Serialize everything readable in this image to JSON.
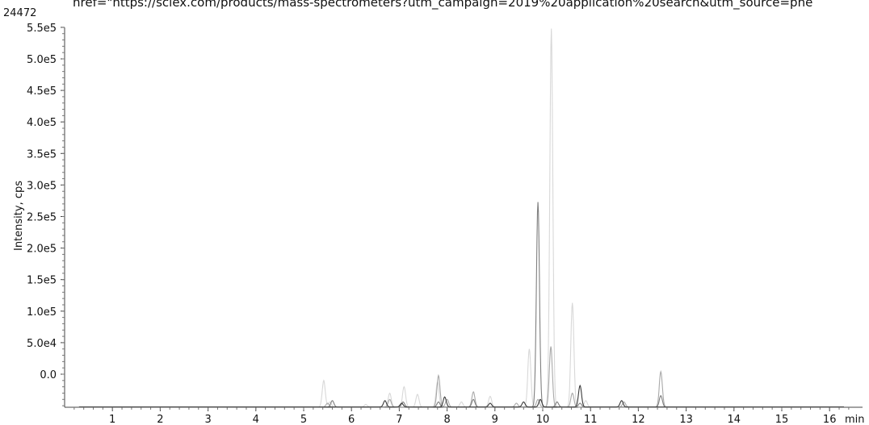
{
  "header": {
    "number": "24472",
    "url_text": "href=\"https://sciex.com/products/mass-spectrometers?utm_campaign=2019%20application%20search&utm_source=phe"
  },
  "chart_data": {
    "type": "line",
    "title": "",
    "xlabel": "min",
    "ylabel": "Intensity, cps",
    "xlim": [
      0,
      16.4
    ],
    "ylim": [
      -55000,
      550000
    ],
    "x_ticks": [
      "1",
      "2",
      "3",
      "4",
      "5",
      "6",
      "7",
      "8",
      "9",
      "10",
      "11",
      "12",
      "13",
      "14",
      "15",
      "16"
    ],
    "x_tick_values": [
      1,
      2,
      3,
      4,
      5,
      6,
      7,
      8,
      9,
      10,
      11,
      12,
      13,
      14,
      15,
      16
    ],
    "y_ticks": [
      "0.0",
      "5.0e4",
      "1.0e5",
      "1.5e5",
      "2.0e5",
      "2.5e5",
      "3.0e5",
      "3.5e5",
      "4.0e5",
      "4.5e5",
      "5.0e5",
      "5.5e5"
    ],
    "y_tick_values": [
      0,
      50000,
      100000,
      150000,
      200000,
      250000,
      300000,
      350000,
      400000,
      450000,
      500000,
      550000
    ],
    "baseline": -52000,
    "series": [
      {
        "color": "#d8d8d8",
        "peaks": [
          [
            5.42,
            -10000
          ],
          [
            5.55,
            -44000
          ],
          [
            6.3,
            -48000
          ],
          [
            6.8,
            -30000
          ],
          [
            7.1,
            -20000
          ],
          [
            7.38,
            -32000
          ],
          [
            7.8,
            -12000
          ],
          [
            8.3,
            -44000
          ],
          [
            8.9,
            -35000
          ],
          [
            9.72,
            40000
          ],
          [
            10.18,
            548000
          ],
          [
            10.62,
            113000
          ],
          [
            10.9,
            -42000
          ]
        ]
      },
      {
        "color": "#a9a9a9",
        "peaks": [
          [
            5.5,
            -46000
          ],
          [
            6.8,
            -40000
          ],
          [
            7.82,
            -2000
          ],
          [
            8.0,
            -40000
          ],
          [
            8.55,
            -28000
          ],
          [
            9.45,
            -46000
          ],
          [
            9.9,
            -40000
          ],
          [
            10.17,
            44000
          ],
          [
            10.62,
            -30000
          ],
          [
            11.7,
            -44000
          ],
          [
            12.47,
            4000
          ]
        ]
      },
      {
        "color": "#7f7f7f",
        "peaks": [
          [
            5.6,
            -42000
          ],
          [
            7.08,
            -44000
          ],
          [
            7.82,
            -44000
          ],
          [
            8.55,
            -40000
          ],
          [
            9.9,
            273000
          ],
          [
            10.3,
            -44000
          ],
          [
            10.78,
            -46000
          ],
          [
            12.47,
            -34000
          ]
        ]
      },
      {
        "color": "#3a3a3a",
        "peaks": [
          [
            6.7,
            -42000
          ],
          [
            7.05,
            -46000
          ],
          [
            7.95,
            -36000
          ],
          [
            8.9,
            -46000
          ],
          [
            9.6,
            -44000
          ],
          [
            9.95,
            -40000
          ],
          [
            10.78,
            -18000
          ],
          [
            11.65,
            -42000
          ]
        ]
      }
    ]
  }
}
